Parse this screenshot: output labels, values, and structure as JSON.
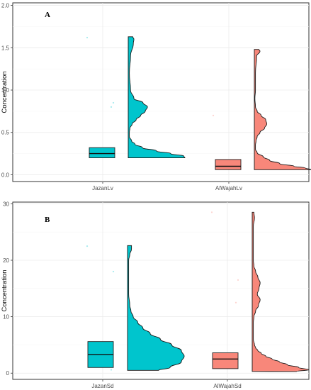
{
  "chart_data": [
    {
      "type": "raincloud",
      "panel_label": "A",
      "ylabel": "Concentration",
      "xlabel": "",
      "ylim": [
        -0.08,
        2.03
      ],
      "yticks": [
        0.0,
        0.5,
        1.0,
        1.5,
        2.0
      ],
      "ytick_labels": [
        "0.0",
        "0.5",
        "1.0",
        "1.5",
        "2.0"
      ],
      "categories": [
        "JazanLv",
        "AlWajahLv"
      ],
      "groups": [
        {
          "category": "JazanLv",
          "color": "#00c5cd",
          "box": {
            "q1": 0.2,
            "median": 0.25,
            "q3": 0.32
          },
          "points": [
            1.62,
            0.85,
            0.8
          ],
          "violin": {
            "y": [
              0.2,
              0.22,
              0.25,
              0.28,
              0.32,
              0.36,
              0.4,
              0.45,
              0.5,
              0.55,
              0.6,
              0.65,
              0.7,
              0.75,
              0.8,
              0.85,
              0.9,
              1.0,
              1.2,
              1.4,
              1.55,
              1.6,
              1.63
            ],
            "density": [
              1.0,
              0.98,
              0.75,
              0.5,
              0.25,
              0.12,
              0.06,
              0.02,
              0.02,
              0.03,
              0.07,
              0.14,
              0.22,
              0.3,
              0.34,
              0.26,
              0.1,
              0.04,
              0.02,
              0.04,
              0.09,
              0.1,
              0.08
            ]
          }
        },
        {
          "category": "AlWajahLv",
          "color": "#f8877a",
          "box": {
            "q1": 0.06,
            "median": 0.1,
            "q3": 0.18
          },
          "points": [
            0.7
          ],
          "violin": {
            "y": [
              0.06,
              0.08,
              0.1,
              0.13,
              0.17,
              0.21,
              0.26,
              0.3,
              0.35,
              0.4,
              0.45,
              0.5,
              0.55,
              0.6,
              0.65,
              0.7,
              0.75,
              0.8,
              0.9,
              1.0,
              1.2,
              1.4,
              1.46,
              1.48
            ],
            "density": [
              1.0,
              0.9,
              0.7,
              0.45,
              0.27,
              0.16,
              0.05,
              0.02,
              0.02,
              0.03,
              0.05,
              0.1,
              0.18,
              0.22,
              0.2,
              0.12,
              0.05,
              0.02,
              0.01,
              0.02,
              0.02,
              0.04,
              0.1,
              0.08
            ]
          }
        }
      ]
    },
    {
      "type": "raincloud",
      "panel_label": "B",
      "ylabel": "Concentration",
      "xlabel": "",
      "ylim": [
        -1.1,
        30.3
      ],
      "yticks": [
        0,
        10,
        20,
        30
      ],
      "ytick_labels": [
        "0",
        "10",
        "20",
        "30"
      ],
      "categories": [
        "JazanSd",
        "AlWajahSd"
      ],
      "groups": [
        {
          "category": "JazanSd",
          "color": "#00c5cd",
          "box": {
            "q1": 1.0,
            "median": 3.3,
            "q3": 5.6
          },
          "points": [
            22.5,
            18.0,
            0.6
          ],
          "violin": {
            "y": [
              0.5,
              1.0,
              2.0,
              3.0,
              4.0,
              5.0,
              6.0,
              7.0,
              8.0,
              9.0,
              10.0,
              11.0,
              12.0,
              14.0,
              16.0,
              18.0,
              20.0,
              21.0,
              22.0,
              22.6
            ],
            "density": [
              0.55,
              0.75,
              0.95,
              1.0,
              0.95,
              0.78,
              0.58,
              0.4,
              0.27,
              0.18,
              0.1,
              0.06,
              0.04,
              0.02,
              0.02,
              0.02,
              0.02,
              0.04,
              0.07,
              0.07
            ]
          }
        },
        {
          "category": "AlWajahSd",
          "color": "#f8877a",
          "box": {
            "q1": 0.8,
            "median": 2.5,
            "q3": 3.6
          },
          "points": [
            28.5,
            16.5,
            12.5
          ],
          "violin": {
            "y": [
              0.3,
              0.6,
              1.0,
              1.5,
              2.0,
              2.5,
              3.0,
              3.5,
              4.0,
              4.5,
              5.0,
              6.0,
              7.0,
              8.0,
              9.0,
              10.0,
              11.0,
              12.0,
              13.0,
              14.0,
              15.0,
              16.0,
              17.0,
              18.0,
              19.0,
              20.0,
              22.0,
              24.0,
              26.0,
              27.5,
              28.5
            ],
            "density": [
              0.78,
              1.0,
              0.82,
              0.62,
              0.48,
              0.35,
              0.24,
              0.16,
              0.1,
              0.06,
              0.04,
              0.02,
              0.02,
              0.02,
              0.02,
              0.03,
              0.06,
              0.11,
              0.14,
              0.09,
              0.12,
              0.14,
              0.1,
              0.06,
              0.03,
              0.02,
              0.02,
              0.02,
              0.02,
              0.04,
              0.03
            ]
          }
        }
      ]
    }
  ]
}
